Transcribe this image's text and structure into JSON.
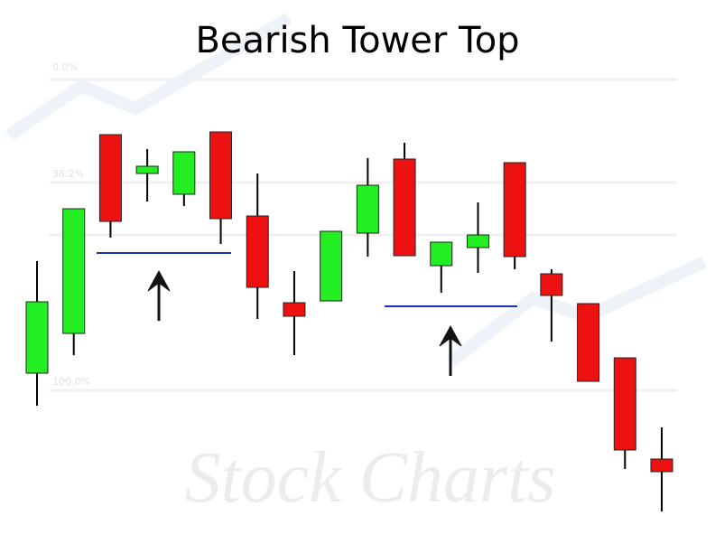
{
  "chart_data": {
    "type": "candlestick",
    "title": "Bearish Tower Top",
    "watermark": "Stock Charts",
    "level_labels": [
      "0.0%",
      "38.2%",
      "100.0%"
    ],
    "ylim": [
      0,
      120
    ],
    "up_color": "#22ee22",
    "down_color": "#ee1111",
    "open": [
      37.4,
      46.2,
      90.2,
      81.6,
      77,
      90.8,
      72.2,
      53,
      53.4,
      68.4,
      84.8,
      61.2,
      65.2,
      84,
      59.4,
      52.8,
      40.8,
      18.4
    ],
    "close": [
      53.2,
      73.8,
      71,
      83.2,
      86.4,
      71.6,
      56.4,
      50,
      68.8,
      79,
      63.4,
      66.4,
      68,
      63.2,
      54.6,
      35.6,
      20.4,
      15.6
    ],
    "high": [
      62.2,
      73.8,
      90.2,
      87,
      86.4,
      90.8,
      81.6,
      60,
      68.8,
      85,
      88.4,
      66.4,
      75.2,
      84,
      60.4,
      52.8,
      40.8,
      25.4
    ],
    "low": [
      30.2,
      41.4,
      67.4,
      75.4,
      74.4,
      66,
      49.4,
      41.4,
      53.4,
      63.2,
      63.4,
      55.2,
      59.6,
      60.4,
      44.4,
      35.6,
      16.2,
      6.8
    ]
  }
}
